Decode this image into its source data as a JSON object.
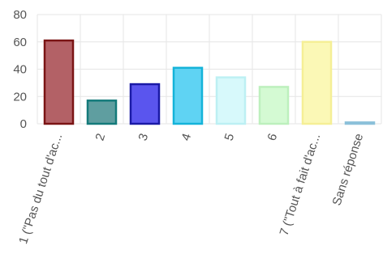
{
  "chart_data": {
    "type": "bar",
    "title": "",
    "xlabel": "",
    "ylabel": "",
    "ylim": [
      0,
      80
    ],
    "yticks": [
      0,
      20,
      40,
      60,
      80
    ],
    "grid": true,
    "categories": [
      "1 (\"Pas du tout d'ac...",
      "2",
      "3",
      "4",
      "5",
      "6",
      "7 (\"Tout à fait d'ac...",
      "Sans réponse"
    ],
    "values": [
      61,
      17,
      29,
      41,
      34,
      27,
      60,
      1
    ],
    "fill_colors": [
      "#b36166",
      "#5f9ea0",
      "#5a55ee",
      "#5fd3f3",
      "#d7f9fb",
      "#d4fad3",
      "#fbf8b6",
      "#b2d7e6"
    ],
    "stroke_colors": [
      "#7a1414",
      "#147a7a",
      "#1a1aa5",
      "#14b3d9",
      "#bdf0f3",
      "#bdf0bd",
      "#f5ef96",
      "#8cc1da"
    ]
  }
}
